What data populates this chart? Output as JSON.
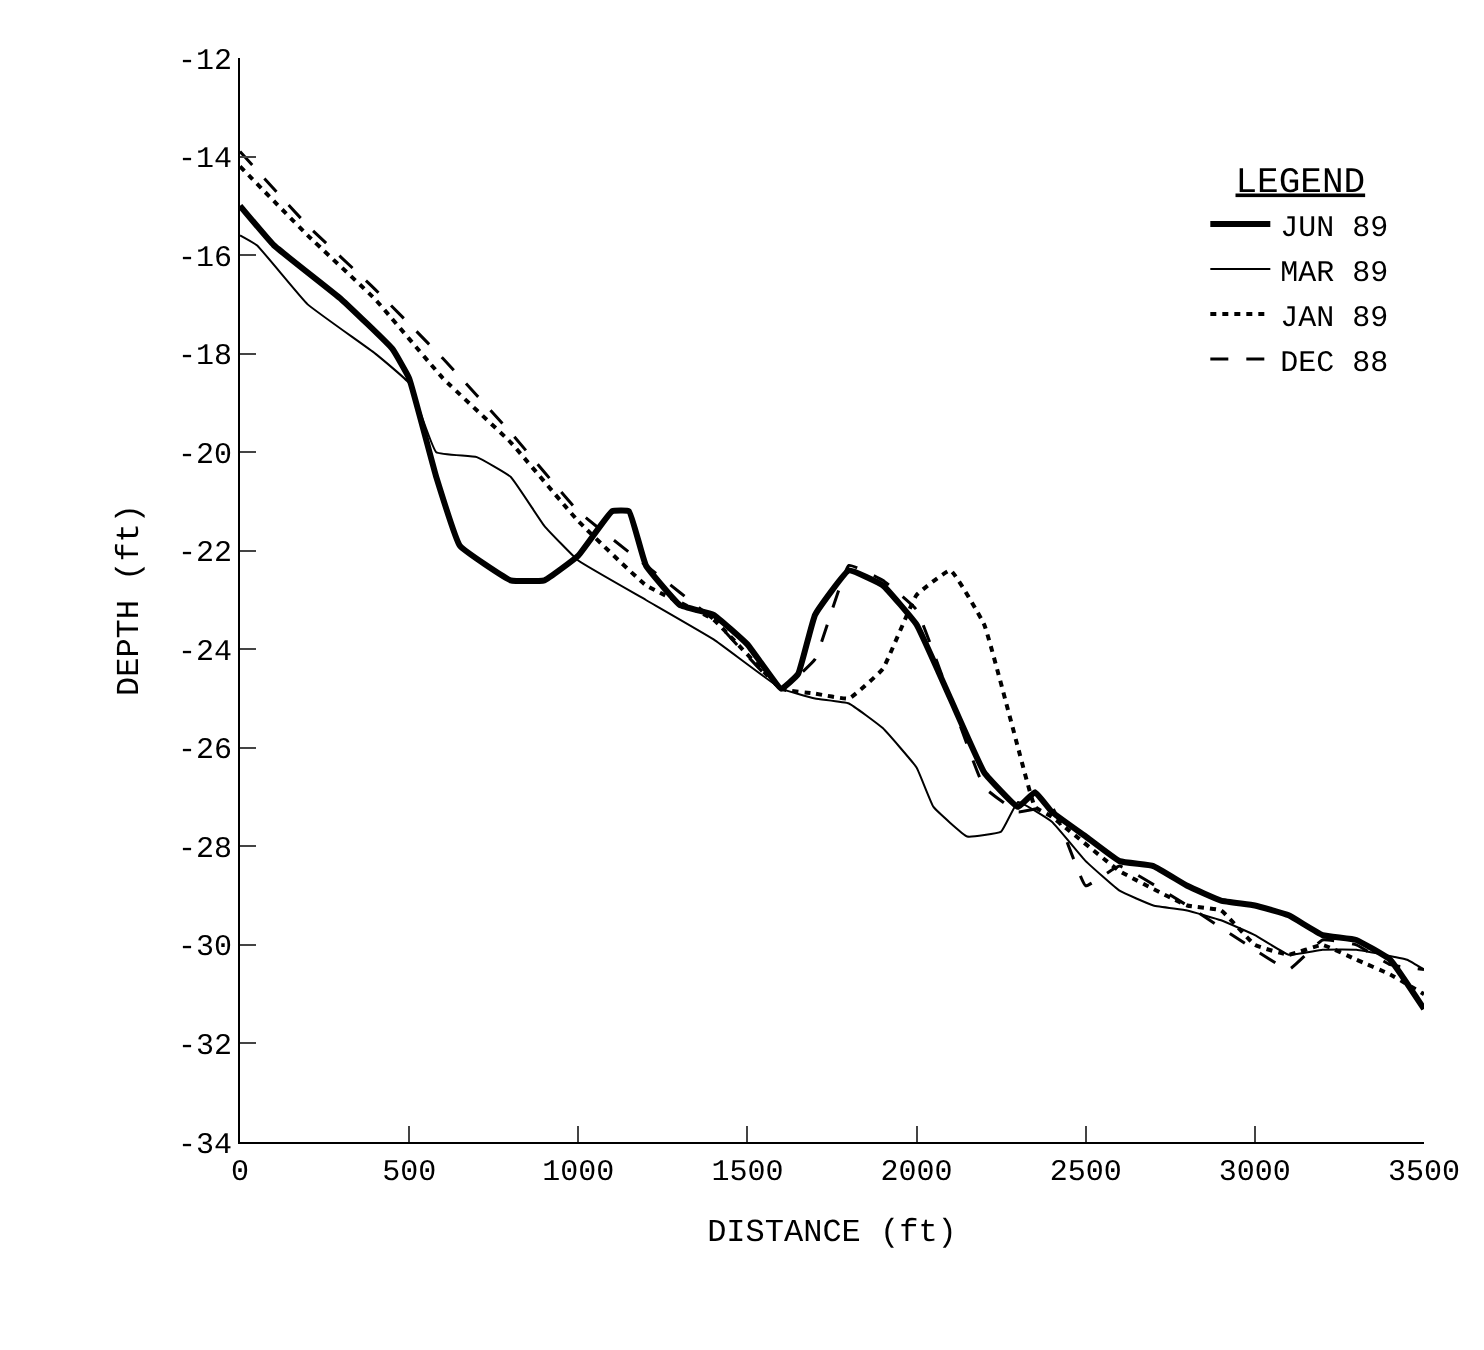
{
  "chart_data": {
    "type": "line",
    "xlabel": "DISTANCE (ft)",
    "ylabel": "DEPTH (ft)",
    "legend_title": "LEGEND",
    "legend": "top right",
    "grid": false,
    "marker": "none",
    "xlim": [
      0,
      3500
    ],
    "xticks": [
      0,
      500,
      1000,
      1500,
      2000,
      2500,
      3000,
      3500
    ],
    "ylim": [
      -34,
      -12
    ],
    "yticks": [
      -34,
      -32,
      -30,
      -28,
      -26,
      -24,
      -22,
      -20,
      -18,
      -16,
      -14,
      -12
    ],
    "series": [
      {
        "name": "JUN 89",
        "color": "#000000",
        "line_style": "solid",
        "x": [
          0,
          100,
          300,
          450,
          500,
          580,
          650,
          800,
          900,
          1000,
          1100,
          1150,
          1200,
          1300,
          1400,
          1500,
          1600,
          1650,
          1700,
          1800,
          1900,
          2000,
          2100,
          2200,
          2300,
          2350,
          2400,
          2500,
          2600,
          2700,
          2800,
          2900,
          3000,
          3100,
          3200,
          3300,
          3400,
          3500
        ],
        "values": [
          -15,
          -15.8,
          -16.9,
          -17.9,
          -18.5,
          -20.5,
          -21.9,
          -22.6,
          -22.6,
          -22.1,
          -21.2,
          -21.2,
          -22.3,
          -23.1,
          -23.3,
          -23.9,
          -24.8,
          -24.5,
          -23.3,
          -22.4,
          -22.7,
          -23.5,
          -25,
          -26.5,
          -27.2,
          -26.9,
          -27.3,
          -27.8,
          -28.3,
          -28.4,
          -28.8,
          -29.1,
          -29.2,
          -29.4,
          -29.8,
          -29.9,
          -30.3,
          -31.3
        ]
      },
      {
        "name": "MAR 89",
        "color": "#000000",
        "line_style": "solid",
        "x": [
          0,
          50,
          200,
          400,
          500,
          580,
          700,
          800,
          900,
          1000,
          1200,
          1400,
          1600,
          1700,
          1800,
          1900,
          2000,
          2050,
          2150,
          2250,
          2300,
          2400,
          2500,
          2600,
          2700,
          2800,
          2900,
          3000,
          3100,
          3200,
          3300,
          3450,
          3500
        ],
        "values": [
          -15.6,
          -15.8,
          -17,
          -18,
          -18.6,
          -20,
          -20.1,
          -20.5,
          -21.5,
          -22.2,
          -23,
          -23.8,
          -24.8,
          -25,
          -25.1,
          -25.6,
          -26.4,
          -27.2,
          -27.8,
          -27.7,
          -27.1,
          -27.5,
          -28.3,
          -28.9,
          -29.2,
          -29.3,
          -29.5,
          -29.8,
          -30.2,
          -30.1,
          -30.1,
          -30.3,
          -30.5
        ]
      },
      {
        "name": "JAN 89",
        "color": "#000000",
        "line_style": "dotted",
        "x": [
          0,
          200,
          400,
          600,
          800,
          1000,
          1200,
          1400,
          1600,
          1700,
          1800,
          1900,
          2000,
          2100,
          2200,
          2300,
          2350,
          2400,
          2600,
          2800,
          2900,
          3000,
          3100,
          3200,
          3300,
          3400,
          3500
        ],
        "values": [
          -14.2,
          -15.6,
          -16.9,
          -18.5,
          -19.8,
          -21.4,
          -22.7,
          -23.4,
          -24.8,
          -24.9,
          -25,
          -24.4,
          -22.9,
          -22.4,
          -23.5,
          -26,
          -27.2,
          -27.4,
          -28.5,
          -29.2,
          -29.3,
          -30,
          -30.2,
          -30,
          -30.3,
          -30.6,
          -31
        ]
      },
      {
        "name": "DEC 88",
        "color": "#000000",
        "line_style": "dashed",
        "x": [
          0,
          200,
          400,
          600,
          800,
          1000,
          1200,
          1400,
          1600,
          1700,
          1800,
          1900,
          2000,
          2100,
          2200,
          2300,
          2400,
          2500,
          2600,
          2800,
          3000,
          3100,
          3200,
          3300,
          3400,
          3500
        ],
        "values": [
          -13.9,
          -15.4,
          -16.7,
          -18.1,
          -19.6,
          -21.2,
          -22.3,
          -23.4,
          -24.8,
          -24.2,
          -22.3,
          -22.6,
          -23.2,
          -25,
          -26.8,
          -27.3,
          -27.2,
          -28.8,
          -28.4,
          -29.2,
          -30.1,
          -30.5,
          -29.9,
          -30,
          -30.4,
          -30.5
        ]
      }
    ]
  }
}
